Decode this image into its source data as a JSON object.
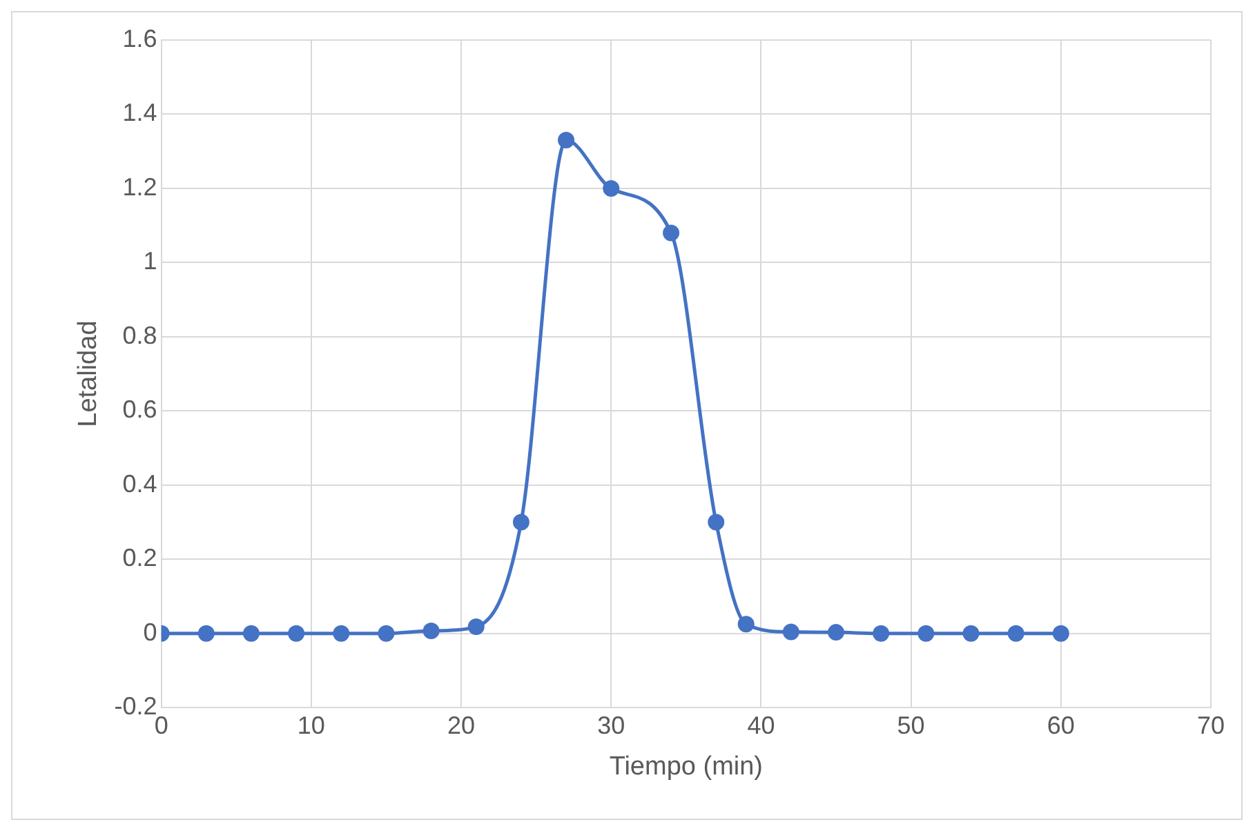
{
  "chart_data": {
    "type": "line",
    "xlabel": "Tiempo (min)",
    "ylabel": "Letalidad",
    "x": [
      0,
      3,
      6,
      9,
      12,
      15,
      18,
      21,
      24,
      27,
      30,
      34,
      37,
      39,
      42,
      45,
      48,
      51,
      54,
      57,
      60
    ],
    "series": [
      {
        "color": "#4472c4",
        "values": [
          0,
          0,
          0,
          0,
          0,
          0,
          0.007,
          0.018,
          0.3,
          1.33,
          1.2,
          1.08,
          0.3,
          0.025,
          0.004,
          0.003,
          0,
          0,
          0,
          0,
          0
        ]
      }
    ],
    "xlim": [
      0,
      70
    ],
    "xticks": [
      0,
      10,
      20,
      30,
      40,
      50,
      60,
      70
    ],
    "ylim": [
      -0.2,
      1.6
    ],
    "yticks": [
      -0.2,
      0,
      0.2,
      0.4,
      0.6,
      0.8,
      1,
      1.2,
      1.4,
      1.6
    ],
    "grid": true,
    "legend": false,
    "marker": "circle",
    "line_style": "solid"
  }
}
